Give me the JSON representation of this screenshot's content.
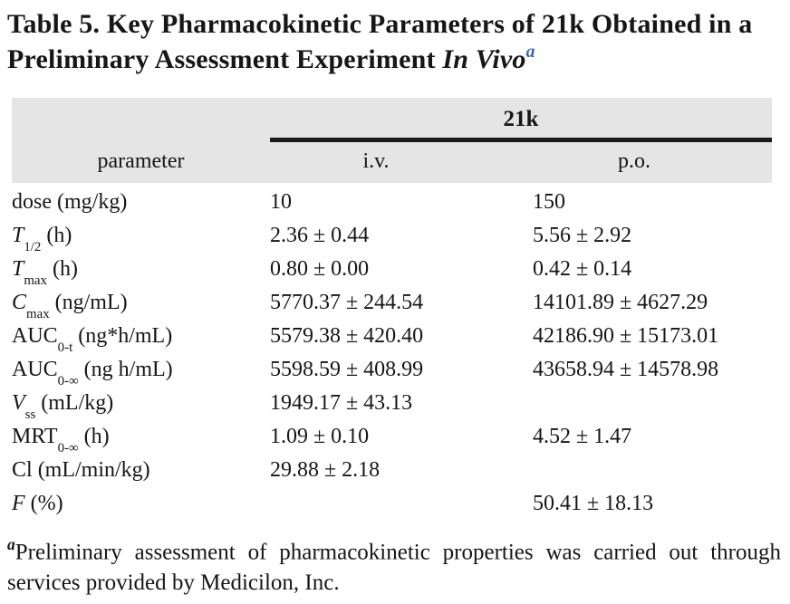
{
  "colors": {
    "header_band": "#e5e5e5",
    "spanner_rule": "#1b1b1b",
    "title_footnote_marker_blue": "#3a64b5",
    "text": "#161616"
  },
  "title": {
    "label": "Table 5. Key Pharmacokinetic Parameters of 21k Obtained in a Preliminary Assessment Experiment",
    "emphasis": "In Vivo",
    "footnote_marker": "a"
  },
  "table": {
    "group_header": "21k",
    "column_headers": {
      "parameter": "parameter",
      "iv": "i.v.",
      "po": "p.o."
    },
    "rows": [
      {
        "label": {
          "base": "dose",
          "sub": "",
          "unit": " (mg/kg)"
        },
        "iv": "10",
        "po": "150"
      },
      {
        "label": {
          "base": "T",
          "sub": "1/2",
          "unit": " (h)"
        },
        "iv": "2.36 ± 0.44",
        "po": "5.56 ± 2.92"
      },
      {
        "label": {
          "base": "T",
          "sub": "max",
          "unit": " (h)"
        },
        "iv": "0.80 ± 0.00",
        "po": "0.42 ± 0.14"
      },
      {
        "label": {
          "base": "C",
          "sub": "max",
          "unit": " (ng/mL)"
        },
        "iv": "5770.37 ± 244.54",
        "po": "14101.89 ± 4627.29"
      },
      {
        "label": {
          "base": "AUC",
          "sub": "0-t",
          "unit": " (ng*h/mL)"
        },
        "iv": "5579.38 ± 420.40",
        "po": "42186.90 ± 15173.01"
      },
      {
        "label": {
          "base": "AUC",
          "sub": "0-∞",
          "unit": " (ng h/mL)"
        },
        "iv": "5598.59 ± 408.99",
        "po": "43658.94 ± 14578.98"
      },
      {
        "label": {
          "base": "V",
          "sub": "ss",
          "unit": " (mL/kg)"
        },
        "iv": "1949.17 ± 43.13",
        "po": ""
      },
      {
        "label": {
          "base": "MRT",
          "sub": "0-∞",
          "unit": " (h)"
        },
        "iv": "1.09 ± 0.10",
        "po": "4.52 ± 1.47"
      },
      {
        "label": {
          "base": "Cl",
          "sub": "",
          "unit": " (mL/min/kg)"
        },
        "iv": "29.88 ± 2.18",
        "po": ""
      },
      {
        "label": {
          "base": "F",
          "sub": "",
          "unit": " (%)"
        },
        "iv": "",
        "po": "50.41 ± 18.13"
      }
    ]
  },
  "footnote": {
    "marker": "a",
    "text": "Preliminary assessment of pharmacokinetic properties was carried out through services provided by Medicilon, Inc."
  }
}
